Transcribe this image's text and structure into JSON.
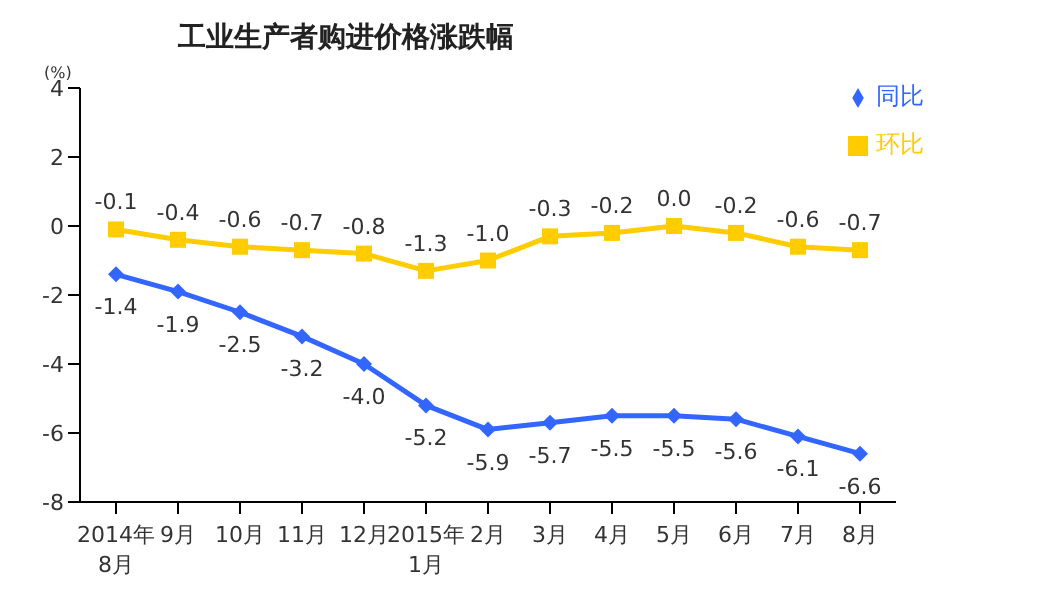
{
  "chart_data": {
    "type": "line",
    "title": "工业生产者购进价格涨跌幅",
    "ylabel": "(%)",
    "categories": [
      "2014年\n8月",
      "9月",
      "10月",
      "11月",
      "12月",
      "2015年\n1月",
      "2月",
      "3月",
      "4月",
      "5月",
      "6月",
      "7月",
      "8月"
    ],
    "series": [
      {
        "name": "同比",
        "color": "#3366ff",
        "marker": "diamond",
        "values": [
          -1.4,
          -1.9,
          -2.5,
          -3.2,
          -4.0,
          -5.2,
          -5.9,
          -5.7,
          -5.5,
          -5.5,
          -5.6,
          -6.1,
          -6.6
        ],
        "value_labels": [
          "-1.4",
          "-1.9",
          "-2.5",
          "-3.2",
          "-4.0",
          "-5.2",
          "-5.9",
          "-5.7",
          "-5.5",
          "-5.5",
          "-5.6",
          "-6.1",
          "-6.6"
        ]
      },
      {
        "name": "环比",
        "color": "#ffcc00",
        "marker": "square",
        "values": [
          -0.1,
          -0.4,
          -0.6,
          -0.7,
          -0.8,
          -1.3,
          -1.0,
          -0.3,
          -0.2,
          0.0,
          -0.2,
          -0.6,
          -0.7
        ],
        "value_labels": [
          "-0.1",
          "-0.4",
          "-0.6",
          "-0.7",
          "-0.8",
          "-1.3",
          "-1.0",
          "-0.3",
          "-0.2",
          "0.0",
          "-0.2",
          "-0.6",
          "-0.7"
        ]
      }
    ],
    "ylim": [
      -8,
      4
    ],
    "yticks": [
      -8,
      -6,
      -4,
      -2,
      0,
      2,
      4
    ],
    "grid": false,
    "legend": "top right",
    "line_style": "solid"
  }
}
